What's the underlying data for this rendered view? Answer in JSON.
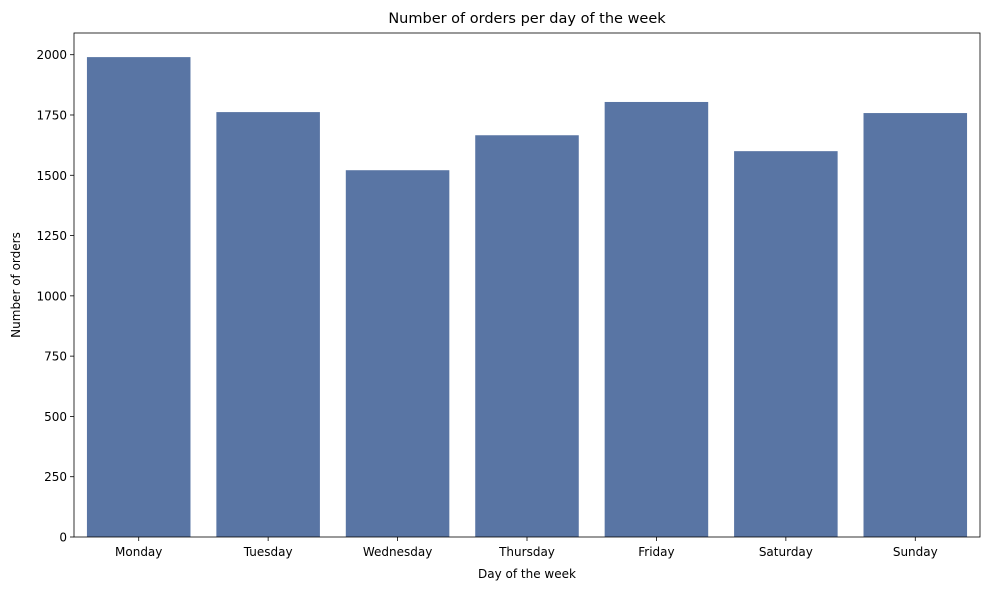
{
  "chart_data": {
    "type": "bar",
    "title": "Number of orders per day of the week",
    "xlabel": "Day of the week",
    "ylabel": "Number of orders",
    "categories": [
      "Monday",
      "Tuesday",
      "Wednesday",
      "Thursday",
      "Friday",
      "Saturday",
      "Sunday"
    ],
    "values": [
      1990,
      1762,
      1521,
      1666,
      1804,
      1600,
      1758
    ],
    "ylim": [
      0,
      2090
    ],
    "yticks": [
      0,
      250,
      500,
      750,
      1000,
      1250,
      1500,
      1750,
      2000
    ],
    "grid": false,
    "bar_color": "#5975a4"
  }
}
